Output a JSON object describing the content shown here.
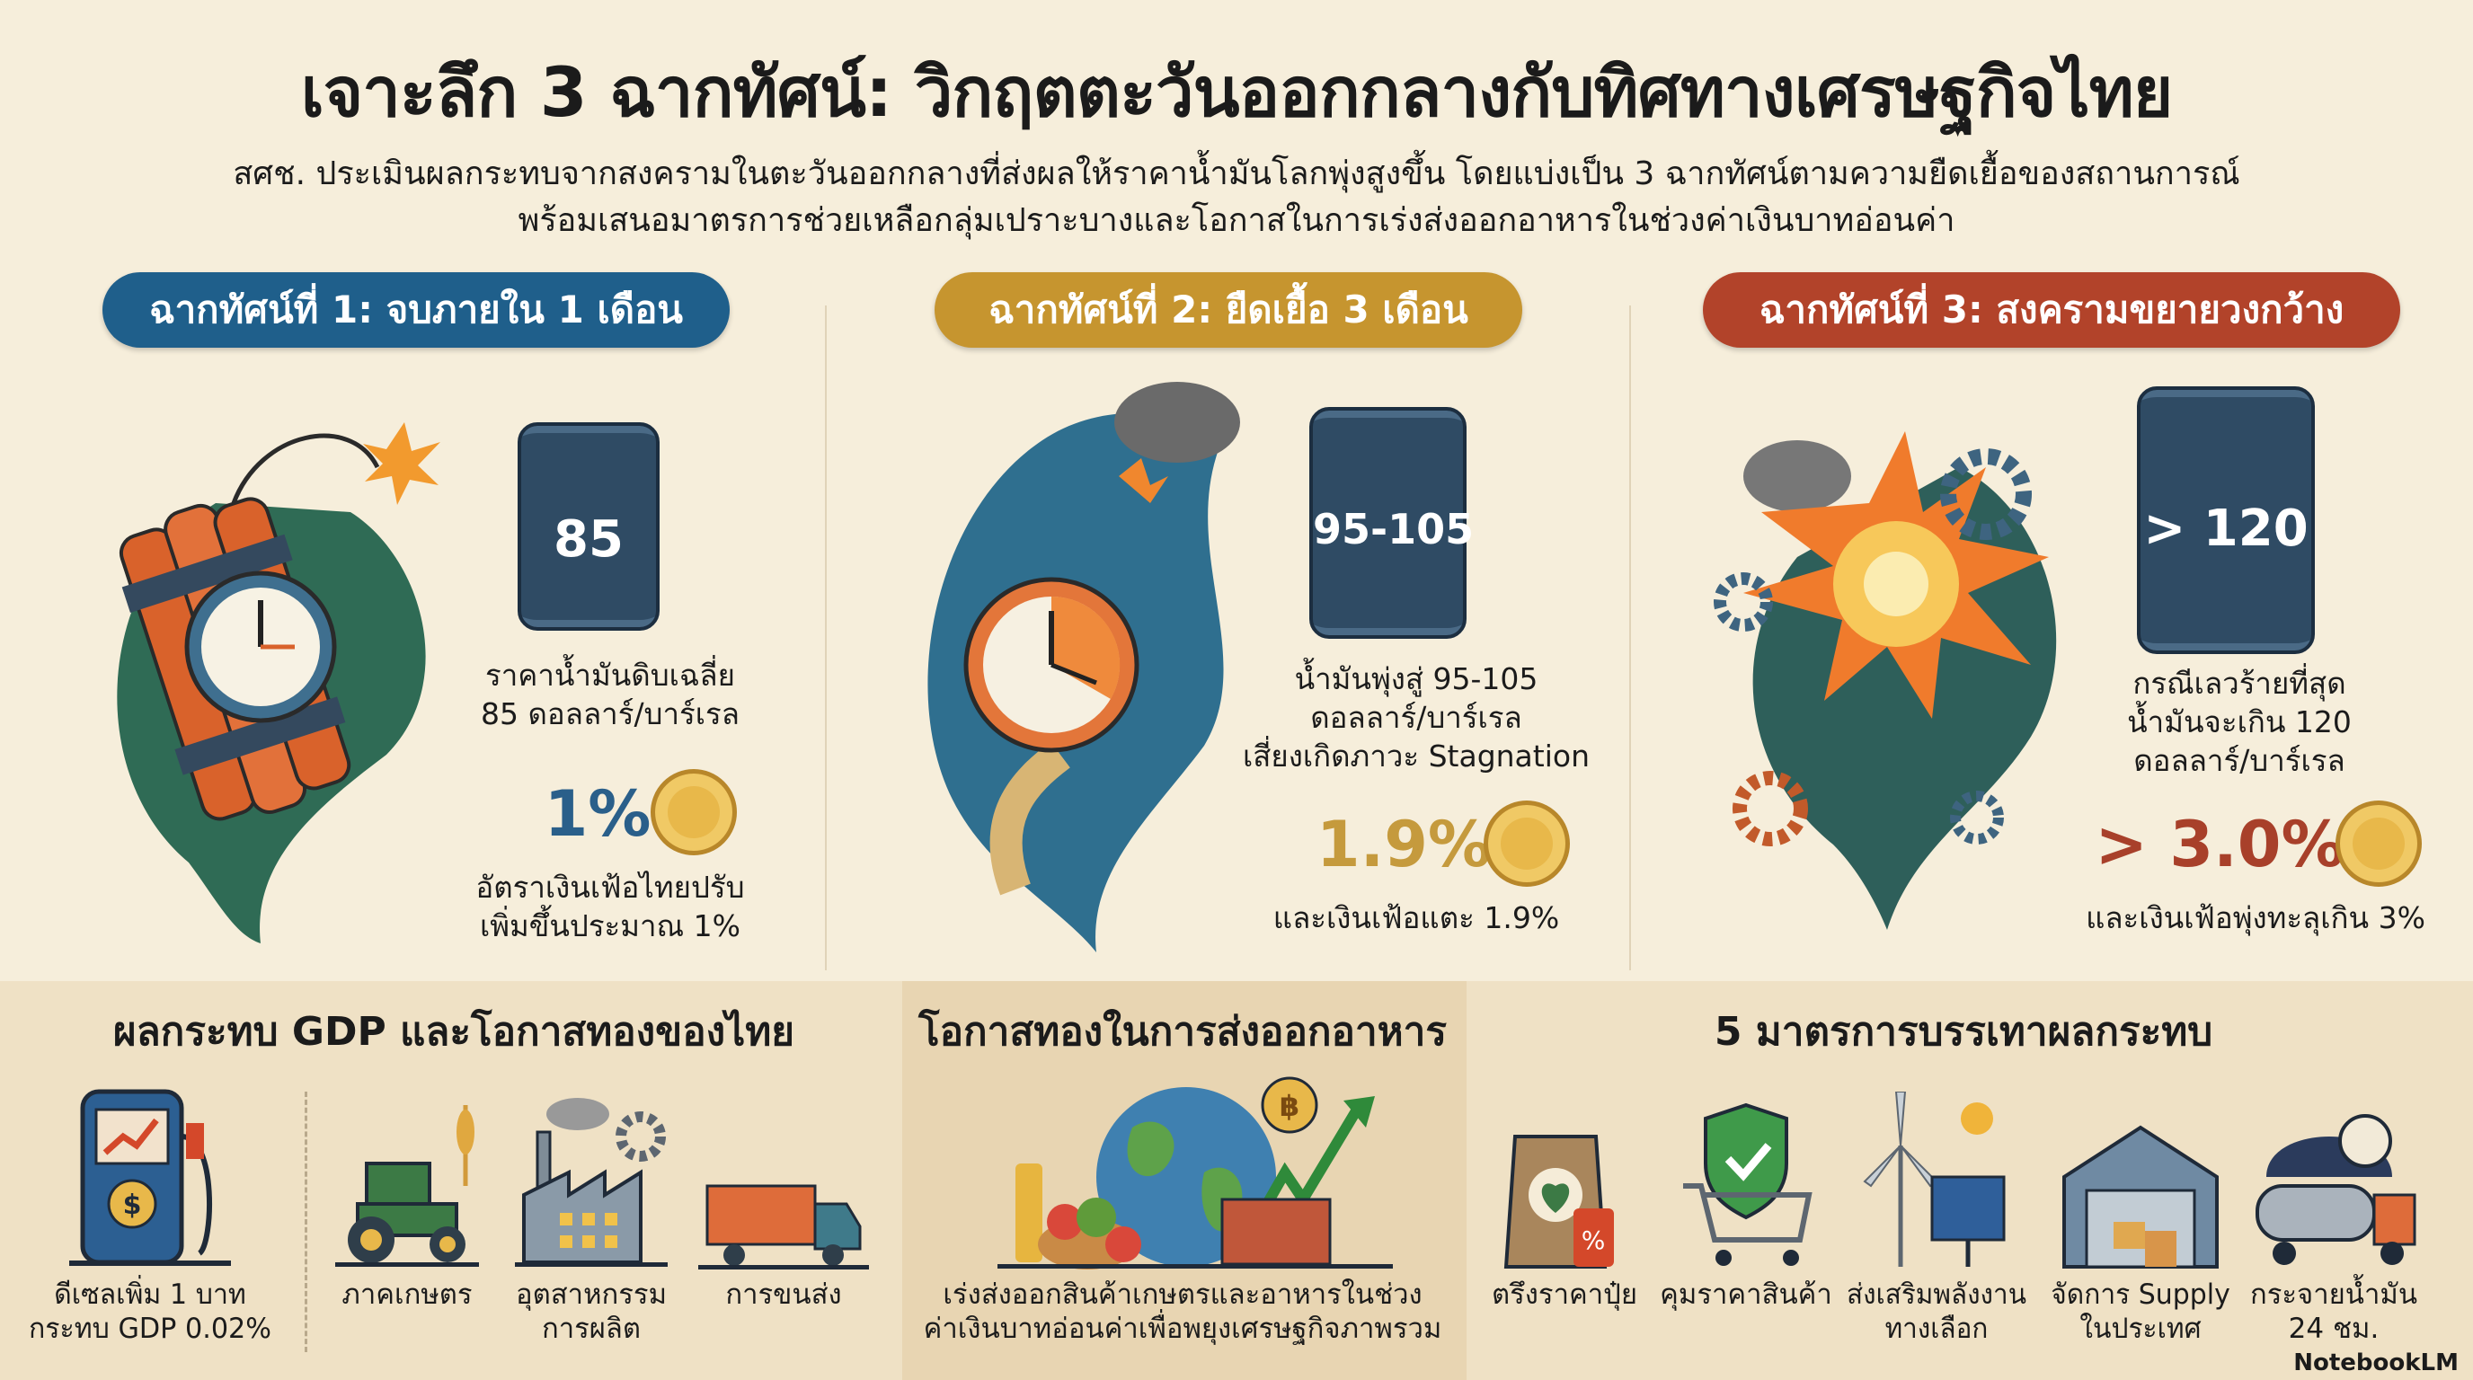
{
  "header": {
    "title": "เจาะลึก 3 ฉากทัศน์: วิกฤตตะวันออกกลางกับทิศทางเศรษฐกิจไทย",
    "subtitle_line1": "สศช. ประเมินผลกระทบจากสงครามในตะวันออกกลางที่ส่งผลให้ราคาน้ำมันโลกพุ่งสูงขึ้น โดยแบ่งเป็น 3 ฉากทัศน์ตามความยืดเยื้อของสถานการณ์",
    "subtitle_line2": "พร้อมเสนอมาตรการช่วยเหลือกลุ่มเปราะบางและโอกาสในการเร่งส่งออกอาหารในช่วงค่าเงินบาทอ่อนค่า"
  },
  "scenarios": [
    {
      "label": "ฉากทัศน์ที่ 1: จบภายใน 1 เดือน",
      "color": "#1f5f8b",
      "barrel": "85",
      "oil_line1": "ราคาน้ำมันดิบเฉลี่ย",
      "oil_line2": "85 ดอลลาร์/บาร์เรล",
      "inflation": "1%",
      "infl_line1": "อัตราเงินเฟ้อไทยปรับ",
      "infl_line2": "เพิ่มขึ้นประมาณ 1%",
      "icon": "dynamite-clock-icon"
    },
    {
      "label": "ฉากทัศน์ที่ 2: ยืดเยื้อ 3 เดือน",
      "color": "#c6952f",
      "barrel": "95-105",
      "oil_line1": "น้ำมันพุ่งสู่ 95-105",
      "oil_line2": "ดอลลาร์/บาร์เรล",
      "oil_line3": "เสี่ยงเกิดภาวะ Stagnation",
      "inflation": "1.9%",
      "infl_line1": "และเงินเฟ้อแตะ 1.9%",
      "icon": "bomb-clock-icon"
    },
    {
      "label": "ฉากทัศน์ที่ 3: สงครามขยายวงกว้าง",
      "color": "#b2432a",
      "barrel": "> 120",
      "oil_line1": "กรณีเลวร้ายที่สุด",
      "oil_line2": "น้ำมันจะเกิน 120",
      "oil_line3": "ดอลลาร์/บาร์เรล",
      "inflation": "> 3.0%",
      "infl_line1": "และเงินเฟ้อพุ่งทะลุเกิน 3%",
      "icon": "explosion-icon"
    }
  ],
  "bottom": {
    "gdp": {
      "title": "ผลกระทบ GDP และโอกาสทองของไทย",
      "items": [
        {
          "line1": "ดีเซลเพิ่ม 1 บาท",
          "line2": "กระทบ GDP 0.02%",
          "icon": "fuel-pump-icon"
        },
        {
          "line1": "ภาคเกษตร",
          "icon": "tractor-icon"
        },
        {
          "line1": "อุตสาหกรรม",
          "line2": "การผลิต",
          "icon": "factory-icon"
        },
        {
          "line1": "การขนส่ง",
          "icon": "truck-icon"
        }
      ]
    },
    "export": {
      "title": "โอกาสทองในการส่งออกอาหาร",
      "line1": "เร่งส่งออกสินค้าเกษตรและอาหารในช่วง",
      "line2": "ค่าเงินบาทอ่อนค่าเพื่อพยุงเศรษฐกิจภาพรวม",
      "icon": "globe-food-export-icon"
    },
    "measures": {
      "title": "5 มาตรการบรรเทาผลกระทบ",
      "items": [
        {
          "line1": "ตรึงราคาปุ๋ย",
          "icon": "fertilizer-bag-icon"
        },
        {
          "line1": "คุมราคาสินค้า",
          "icon": "shopping-cart-shield-icon"
        },
        {
          "line1": "ส่งเสริมพลังงาน",
          "line2": "ทางเลือก",
          "icon": "wind-solar-icon"
        },
        {
          "line1": "จัดการ Supply",
          "line2": "ในประเทศ",
          "icon": "warehouse-icon"
        },
        {
          "line1": "กระจายน้ำมัน",
          "line2": "24 ชม.",
          "icon": "tanker-truck-icon"
        }
      ]
    }
  },
  "watermark": "NotebookLM",
  "colors": {
    "background": "#f6eedb",
    "panel": "#efe1c5",
    "panel_mid": "#e8d5b2",
    "barrel": "#2f4b64",
    "coin": "#e8b84a"
  }
}
